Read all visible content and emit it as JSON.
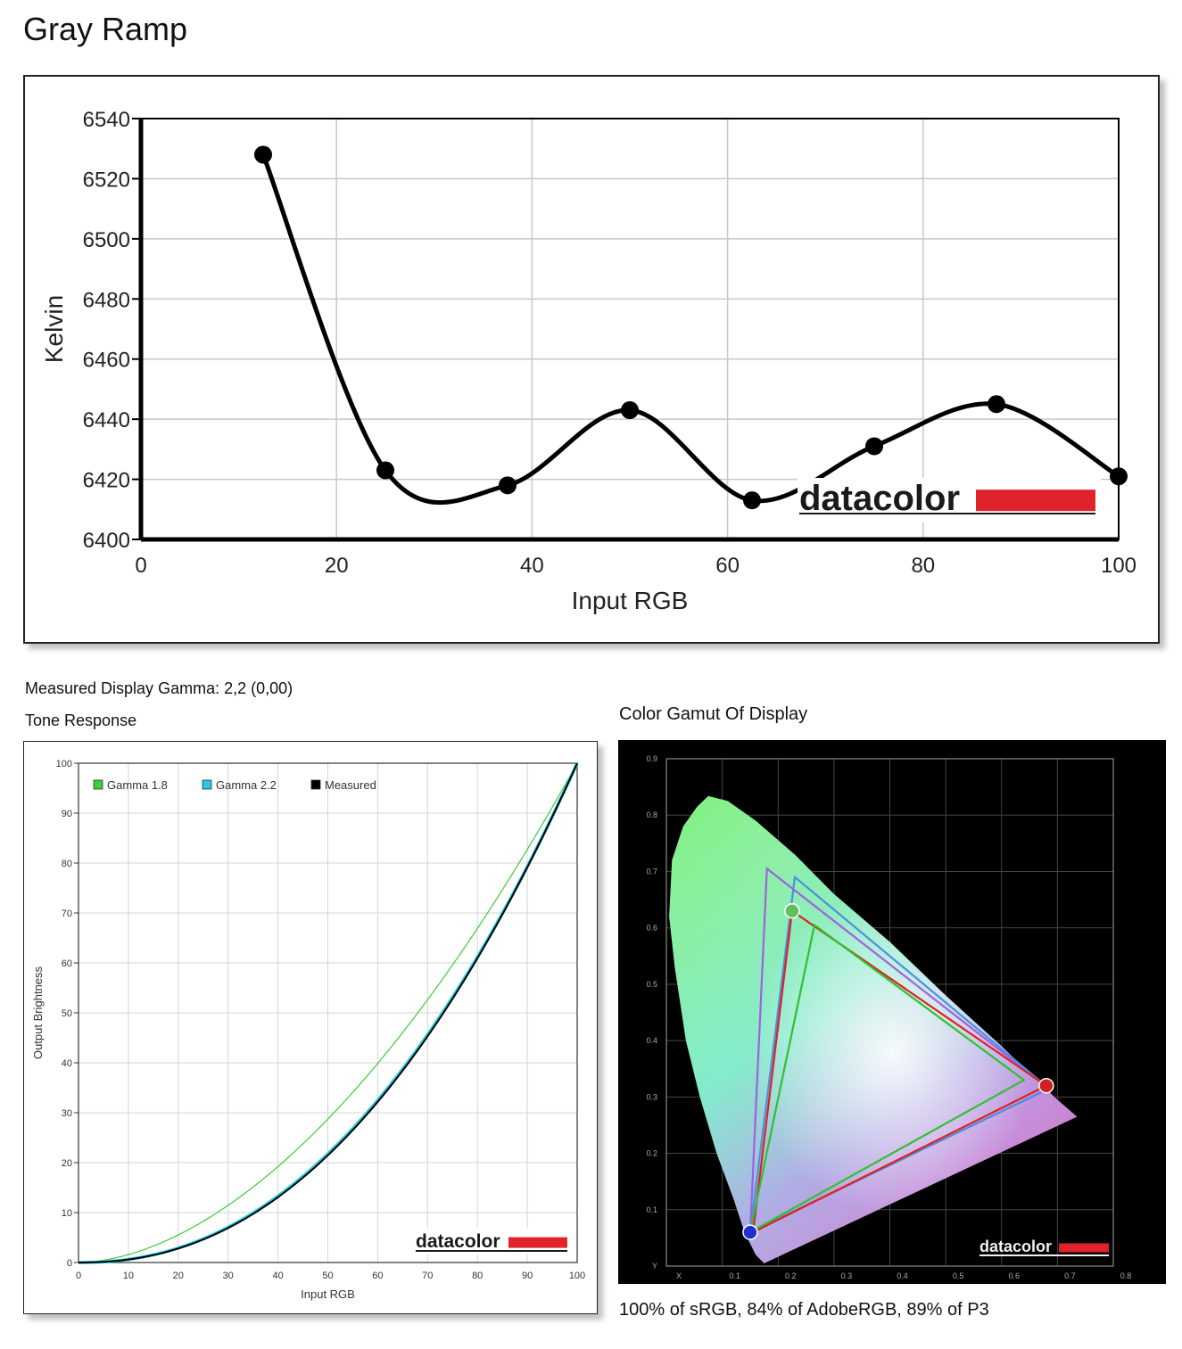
{
  "page_title": "Gray Ramp",
  "gamma_text": "Measured Display Gamma: 2,2 (0,00)",
  "tone_title": "Tone Response",
  "gamut_title": "Color Gamut Of Display",
  "gamut_footer": "100% of sRGB, 84% of AdobeRGB, 89% of P3",
  "logo_text": "datacolor",
  "colors": {
    "logo_red": "#e0232b",
    "gamma18": "#3ccc3c",
    "gamma22": "#26c9e0",
    "measured": "#000000"
  },
  "chart_data": [
    {
      "id": "gray-ramp",
      "type": "line",
      "xlabel": "Input RGB",
      "ylabel": "Kelvin",
      "xlim": [
        0,
        100
      ],
      "ylim": [
        6400,
        6540
      ],
      "x_ticks": [
        "0",
        "20",
        "40",
        "60",
        "80",
        "100"
      ],
      "y_ticks": [
        "6400",
        "6420",
        "6440",
        "6460",
        "6480",
        "6500",
        "6520",
        "6540"
      ],
      "grid": true,
      "x": [
        12.5,
        25,
        37.5,
        50,
        62.5,
        75,
        87.5,
        100
      ],
      "values": [
        6528,
        6423,
        6418,
        6443,
        6413,
        6431,
        6445,
        6421
      ]
    },
    {
      "id": "tone-response",
      "type": "line",
      "xlabel": "Input RGB",
      "ylabel": "Output Brightness",
      "xlim": [
        0,
        100
      ],
      "ylim": [
        0,
        100
      ],
      "x_ticks": [
        "0",
        "10",
        "20",
        "30",
        "40",
        "50",
        "60",
        "70",
        "80",
        "90",
        "100"
      ],
      "y_ticks": [
        "0",
        "10",
        "20",
        "30",
        "40",
        "50",
        "60",
        "70",
        "80",
        "90",
        "100"
      ],
      "grid": true,
      "legend": "top-left",
      "series": [
        {
          "name": "Gamma 1.8",
          "gamma": 1.8,
          "color": "#3ccc3c"
        },
        {
          "name": "Gamma 2.2",
          "gamma": 2.2,
          "color": "#26c9e0"
        },
        {
          "name": "Measured",
          "gamma": 2.22,
          "color": "#000000"
        }
      ]
    },
    {
      "id": "color-gamut",
      "type": "scatter",
      "xlim": [
        0,
        0.8
      ],
      "ylim": [
        0,
        0.9
      ],
      "x_ticks": [
        "X",
        "0.1",
        "0.2",
        "0.3",
        "0.4",
        "0.5",
        "0.6",
        "0.7",
        "0.8"
      ],
      "y_ticks": [
        "Y",
        "0.1",
        "0.2",
        "0.3",
        "0.4",
        "0.5",
        "0.6",
        "0.7",
        "0.8",
        "0.9"
      ],
      "grid": true,
      "triangles": [
        {
          "color": "#a060e0",
          "points": [
            [
              0.18,
              0.705
            ],
            [
              0.685,
              0.315
            ],
            [
              0.15,
              0.06
            ]
          ]
        },
        {
          "color": "#4a90e0",
          "points": [
            [
              0.23,
              0.69
            ],
            [
              0.685,
              0.315
            ],
            [
              0.15,
              0.06
            ]
          ]
        },
        {
          "color": "#e02020",
          "points": [
            [
              0.225,
              0.63
            ],
            [
              0.68,
              0.32
            ],
            [
              0.155,
              0.06
            ]
          ]
        },
        {
          "color": "#30c030",
          "points": [
            [
              0.265,
              0.605
            ],
            [
              0.64,
              0.33
            ],
            [
              0.15,
              0.06
            ]
          ]
        }
      ],
      "primaries": [
        {
          "color": "#5fc05f",
          "x": 0.225,
          "y": 0.63
        },
        {
          "color": "#d02020",
          "x": 0.68,
          "y": 0.32
        },
        {
          "color": "#2030d0",
          "x": 0.15,
          "y": 0.06
        }
      ]
    }
  ]
}
